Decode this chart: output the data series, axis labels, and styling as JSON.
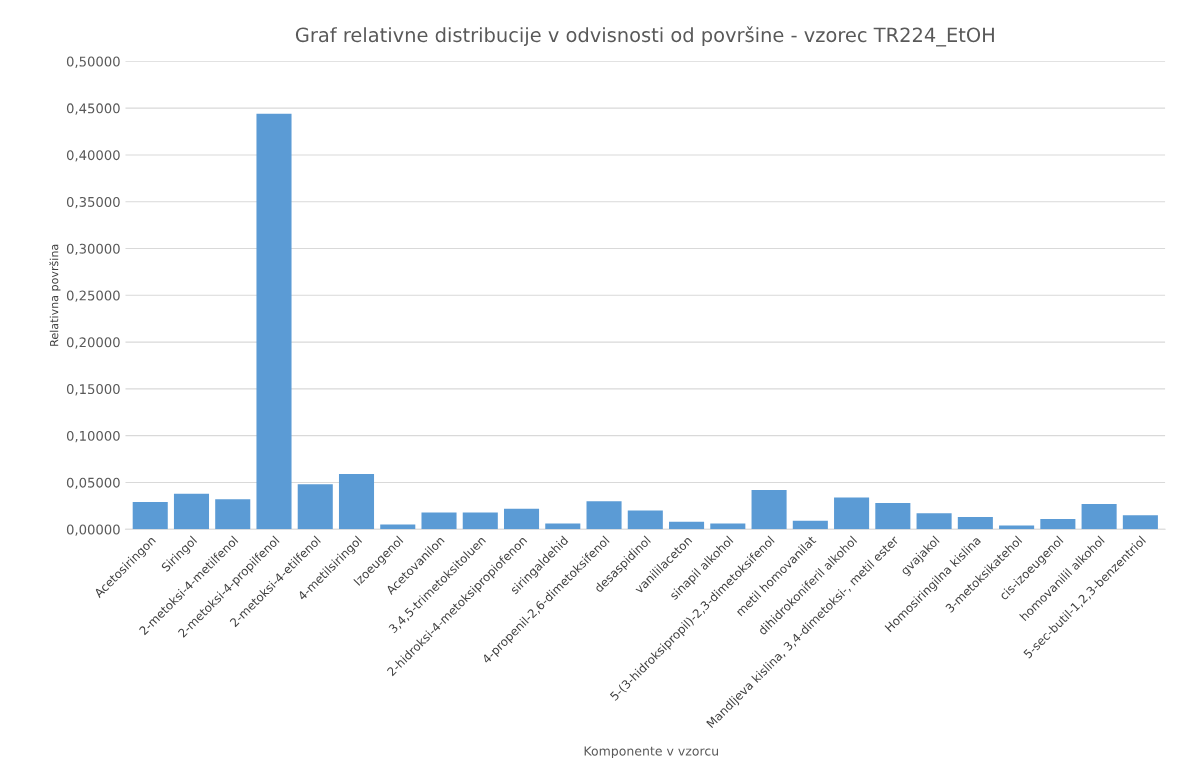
{
  "chart_data": {
    "type": "bar",
    "title": "Graf relativne distribucije v odvisnosti od površine - vzorec TR224_EtOH",
    "xlabel": "Komponente v vzorcu",
    "ylabel": "Relativna površina",
    "categories": [
      "Acetosiringon",
      "Siringol",
      "2-metoksi-4-metilfenol",
      "2-metoksi-4-propilfenol",
      "2-metoksi-4-etilfenol",
      "4-metilsiringol",
      "Izoeugenol",
      "Acetovanilon",
      "3,4,5-trimetoksitoluen",
      "2-hidroksi-4-metoksipropiofenon",
      "siringaldehid",
      "4-propenil-2,6-dimetoksifenol",
      "desaspidinol",
      "vanililaceton",
      "sinapil alkohol",
      "5-(3-hidroksipropil)-2,3-dimetoksifenol",
      "metil homovanilat",
      "dihidrokoniferil alkohol",
      "Mandljeva kislina, 3,4-dimetoksi-, metil ester",
      "gvajakol",
      "Homosiringilna kislina",
      "3-metoksikatehol",
      "cis-izoeugenol",
      "homovanilil alkohol",
      "5-sec-butil-1,2,3-benzentriol"
    ],
    "values": [
      0.029,
      0.038,
      0.032,
      0.444,
      0.048,
      0.059,
      0.005,
      0.018,
      0.018,
      0.022,
      0.006,
      0.03,
      0.02,
      0.008,
      0.006,
      0.042,
      0.009,
      0.034,
      0.028,
      0.017,
      0.013,
      0.004,
      0.011,
      0.027,
      0.015
    ],
    "color": "#5b9bd5",
    "ylim": [
      0,
      0.5
    ],
    "yticks": [
      {
        "value": 0,
        "label": "0,00000"
      },
      {
        "value": 0.05,
        "label": "0,05000"
      },
      {
        "value": 0.1,
        "label": "0,10000"
      },
      {
        "value": 0.15,
        "label": "0,15000"
      },
      {
        "value": 0.2,
        "label": "0,20000"
      },
      {
        "value": 0.25,
        "label": "0,25000"
      },
      {
        "value": 0.3,
        "label": "0,30000"
      },
      {
        "value": 0.35,
        "label": "0,35000"
      },
      {
        "value": 0.4,
        "label": "0,40000"
      },
      {
        "value": 0.45,
        "label": "0,45000"
      },
      {
        "value": 0.5,
        "label": "0,50000"
      }
    ],
    "grid": "y"
  }
}
